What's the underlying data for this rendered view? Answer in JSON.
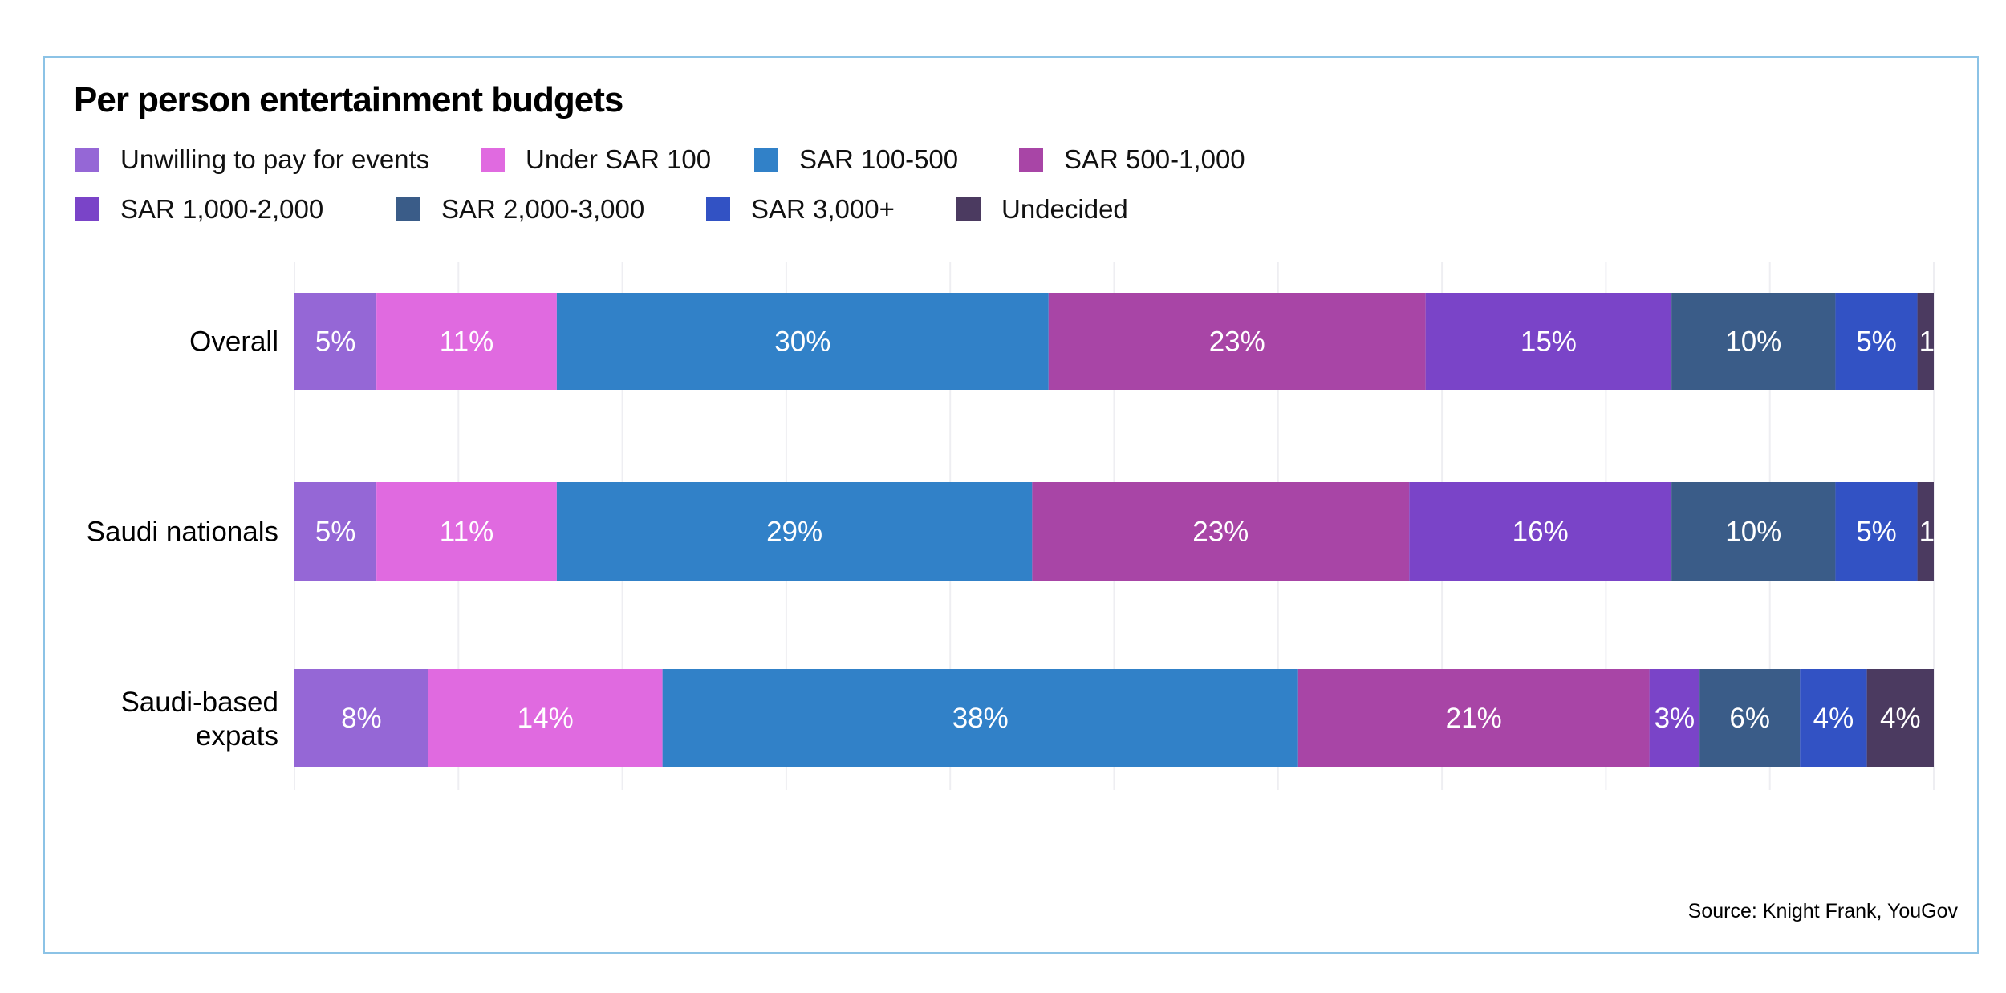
{
  "chart_data": {
    "type": "bar",
    "orientation": "horizontal",
    "stacked": true,
    "title": "Per person entertainment budgets",
    "categories": [
      "Overall",
      "Saudi nationals",
      "Saudi-based expats"
    ],
    "series": [
      {
        "name": "Unwilling to pay for events",
        "color": "#9567d6",
        "values": [
          5,
          5,
          8
        ]
      },
      {
        "name": "Under SAR 100",
        "color": "#e06ae0",
        "values": [
          11,
          11,
          14
        ]
      },
      {
        "name": "SAR 100-500",
        "color": "#3181c8",
        "values": [
          30,
          29,
          38
        ]
      },
      {
        "name": "SAR 500-1,000",
        "color": "#a845a6",
        "values": [
          23,
          23,
          21
        ]
      },
      {
        "name": "SAR 1,000-2,000",
        "color": "#7a44c8",
        "values": [
          15,
          16,
          3
        ]
      },
      {
        "name": "SAR 2,000-3,000",
        "color": "#3a5c88",
        "values": [
          10,
          10,
          6
        ]
      },
      {
        "name": "SAR 3,000+",
        "color": "#3252c4",
        "values": [
          5,
          5,
          4
        ]
      },
      {
        "name": "Undecided",
        "color": "#4b3a60",
        "values": [
          1,
          1,
          4
        ]
      }
    ],
    "unit": "%",
    "xlim": [
      0,
      100
    ],
    "grid": true,
    "legend_position": "top-left",
    "source": "Source: Knight Frank, YouGov"
  }
}
